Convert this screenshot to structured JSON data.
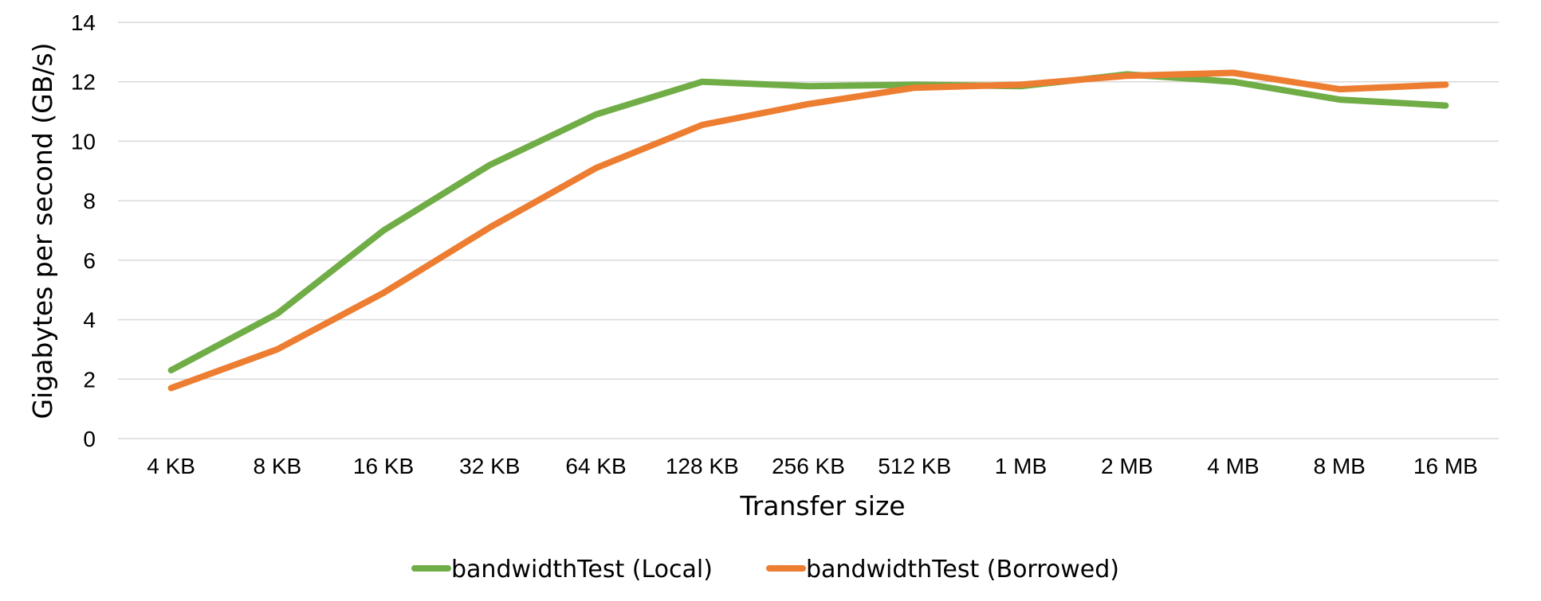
{
  "chart_data": {
    "type": "line",
    "title": "",
    "xlabel": "Transfer size",
    "ylabel": "Gigabytes per second (GB/s)",
    "ylim": [
      0,
      14
    ],
    "yticks": [
      0,
      2,
      4,
      6,
      8,
      10,
      12,
      14
    ],
    "grid": true,
    "legend_position": "bottom",
    "categories": [
      "4 KB",
      "8 KB",
      "16 KB",
      "32 KB",
      "64 KB",
      "128 KB",
      "256 KB",
      "512 KB",
      "1 MB",
      "2 MB",
      "4 MB",
      "8 MB",
      "16 MB"
    ],
    "series": [
      {
        "name": "bandwidthTest (Local)",
        "color": "#70ad47",
        "values": [
          2.3,
          4.2,
          7.0,
          9.2,
          10.9,
          12.0,
          11.85,
          11.9,
          11.85,
          12.25,
          12.0,
          11.4,
          11.2
        ]
      },
      {
        "name": "bandwidthTest (Borrowed)",
        "color": "#ed7d31",
        "values": [
          1.7,
          3.0,
          4.9,
          7.1,
          9.1,
          10.55,
          11.25,
          11.8,
          11.9,
          12.2,
          12.3,
          11.75,
          11.9
        ]
      }
    ]
  }
}
